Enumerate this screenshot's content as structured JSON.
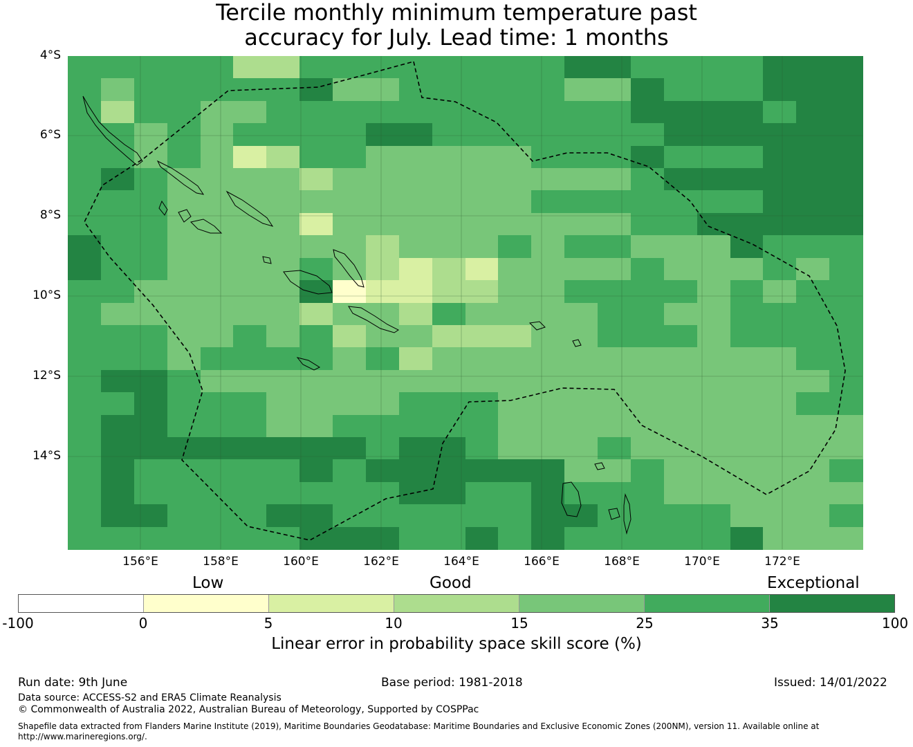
{
  "title": {
    "line1": "Tercile monthly minimum temperature past",
    "line2": "accuracy for July. Lead time: 1 months"
  },
  "map": {
    "lat_labels": [
      "4°S",
      "6°S",
      "8°S",
      "10°S",
      "12°S",
      "14°S"
    ],
    "lon_labels": [
      "156°E",
      "158°E",
      "160°E",
      "162°E",
      "164°E",
      "166°E",
      "168°E",
      "170°E",
      "172°E"
    ],
    "grid_cols": 24,
    "grid_rows": 22,
    "palette": [
      "#ffffff",
      "#ffffcc",
      "#d9f0a3",
      "#addd8e",
      "#78c679",
      "#41ab5d",
      "#238443"
    ],
    "skill_class_grid": [
      "555553355555555665555666",
      "545555564455555446555666",
      "535544555555555556666566",
      "554545555665555555666666",
      "554542355444445556555666",
      "565444434444444445666666",
      "555444444444445555555666",
      "555444424444444445566666",
      "655444444344454554446555",
      "655444454323244445444545",
      "554444461223344555545455",
      "544444434435444455445555",
      "555445453443334455545555",
      "555455554534444444444455",
      "566544444444444444444445",
      "556555444455544444444455",
      "566555445555544444444444",
      "566666666566544454444444",
      "565555565666666445444445",
      "565555555566556555444444",
      "566555665555556655554445",
      "555555566655656555556444"
    ]
  },
  "legend": {
    "categories": [
      "Low",
      "Good",
      "Exceptional"
    ],
    "colors": [
      "#ffffff",
      "#ffffcc",
      "#d9f0a3",
      "#addd8e",
      "#78c679",
      "#41ab5d",
      "#238443"
    ],
    "ticks": [
      "-100",
      "0",
      "5",
      "10",
      "15",
      "25",
      "35",
      "100"
    ],
    "label": "Linear error in probability space skill score (%)"
  },
  "footer": {
    "run_date": "Run date: 9th June",
    "base_period": "Base period: 1981-2018",
    "issued": "Issued: 14/01/2022",
    "data_source": "Data source: ACCESS-S2 and ERA5 Climate Reanalysis",
    "copyright": "© Commonwealth of Australia 2022, Australian Bureau of Meteorology, Supported by COSPPac",
    "shapefile_line1": "Shapefile data extracted from Flanders Marine Institute (2019), Maritime Boundaries Geodatabase: Maritime Boundaries and Exclusive Economic Zones (200NM), version 11. Available online at",
    "shapefile_line2": "http://www.marineregions.org/."
  }
}
